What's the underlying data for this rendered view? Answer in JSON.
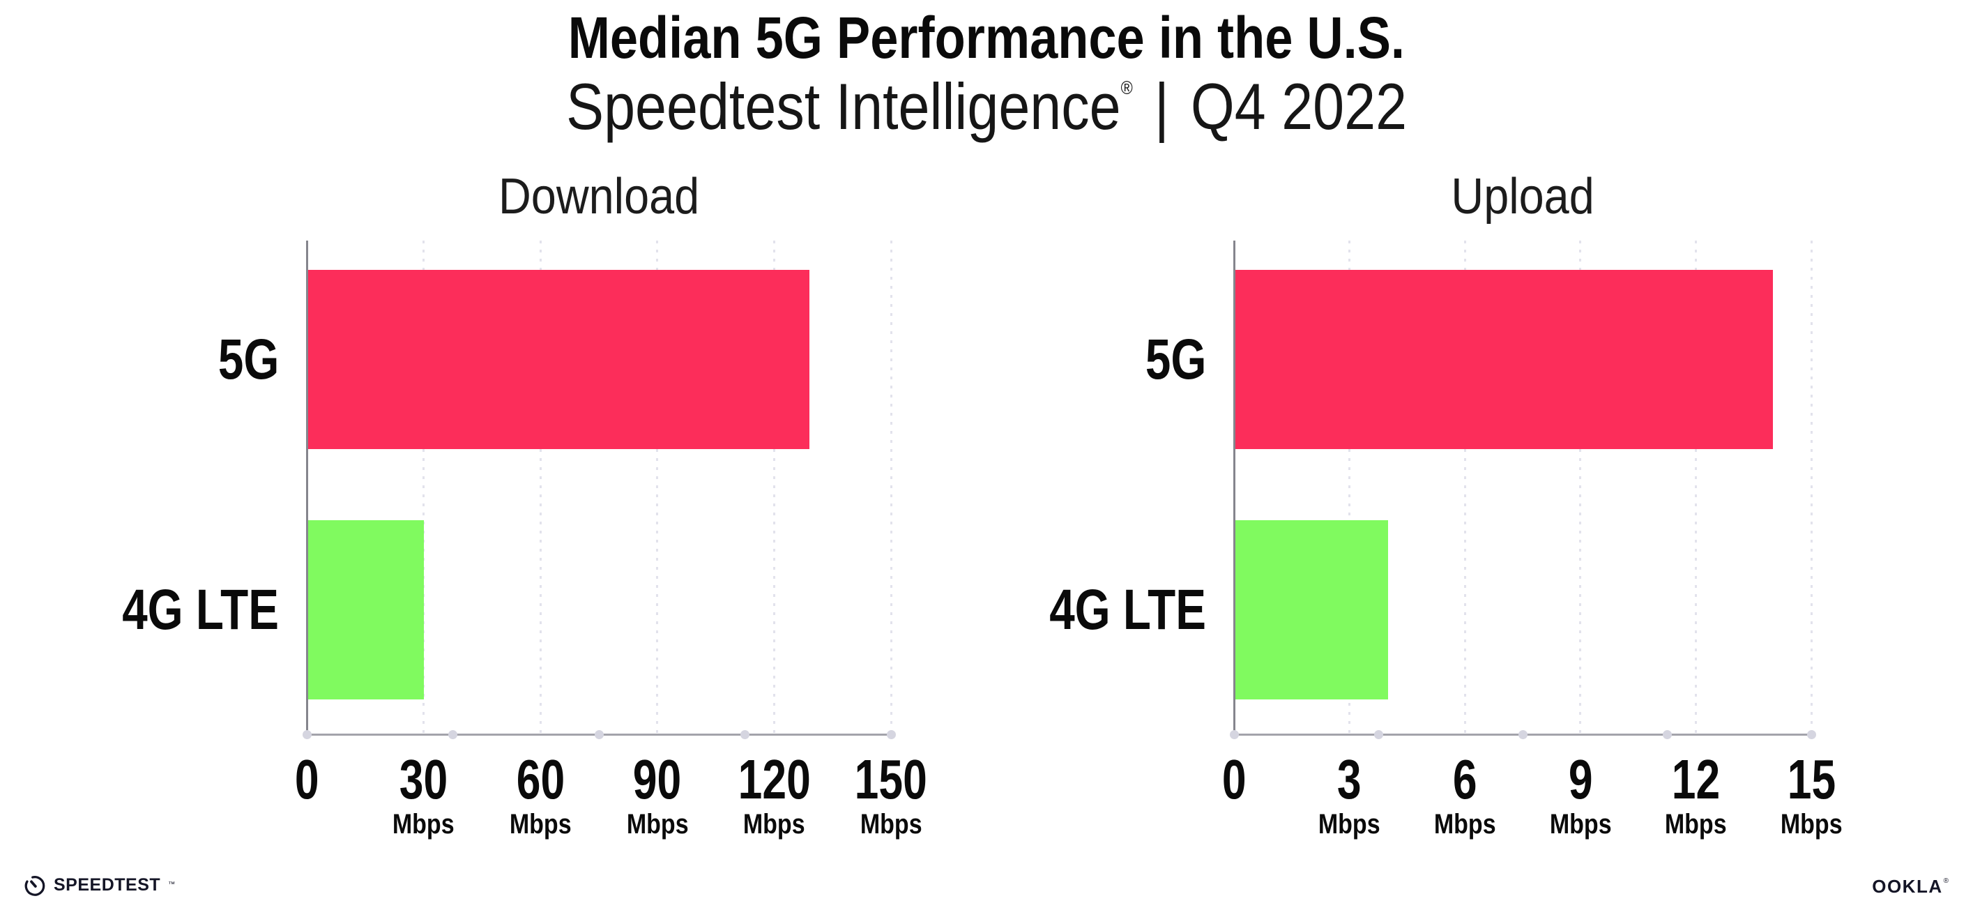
{
  "page": {
    "title": "Median 5G Performance in the U.S.",
    "subtitle": {
      "brand": "Speedtest Intelligence",
      "registered_mark": "®",
      "separator": "|",
      "period": "Q4 2022"
    }
  },
  "footer": {
    "speedtest_icon": "speedometer-gauge-icon",
    "speedtest_wordmark": "SPEEDTEST",
    "speedtest_trademark": "™",
    "ookla_wordmark": "OOKLA",
    "ookla_registered": "®"
  },
  "colors": {
    "bar_5g": "#fc2d5a",
    "bar_4g_lte": "#80fa5f",
    "axis_line": "#9b9ba3",
    "gridline": "#e2e2ec",
    "axis_dot": "#d5d5e0",
    "text": "#111111"
  },
  "chart_data": [
    {
      "type": "bar",
      "orientation": "horizontal",
      "title": "Download",
      "categories": [
        "5G",
        "4G LTE"
      ],
      "values": [
        129,
        30
      ],
      "value_unit": "Mbps",
      "xlim": [
        0,
        150
      ],
      "xticks": [
        0,
        30,
        60,
        90,
        120,
        150
      ],
      "xtick_unit": "Mbps",
      "grid": "vertical-dotted, none at 0",
      "legend": "none",
      "bar_colors": [
        "#fc2d5a",
        "#80fa5f"
      ]
    },
    {
      "type": "bar",
      "orientation": "horizontal",
      "title": "Upload",
      "categories": [
        "5G",
        "4G LTE"
      ],
      "values": [
        14,
        4
      ],
      "value_unit": "Mbps",
      "xlim": [
        0,
        15
      ],
      "xticks": [
        0,
        3,
        6,
        9,
        12,
        15
      ],
      "xtick_unit": "Mbps",
      "grid": "vertical-dotted, none at 0",
      "legend": "none",
      "bar_colors": [
        "#fc2d5a",
        "#80fa5f"
      ]
    }
  ]
}
